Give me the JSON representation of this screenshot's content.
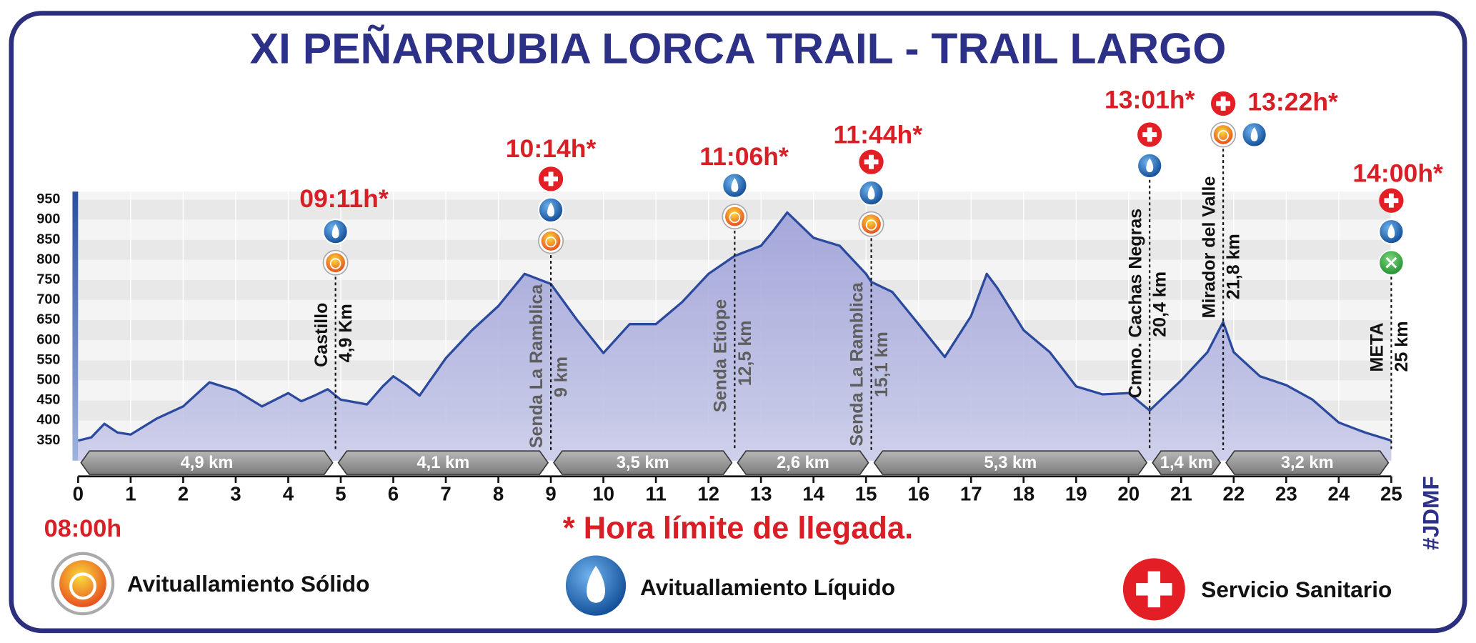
{
  "chart_data": {
    "type": "area",
    "title": "XI PEÑARRUBIA LORCA TRAIL - TRAIL LARGO",
    "x": [
      0,
      0.25,
      0.5,
      0.75,
      1,
      1.5,
      2,
      2.5,
      3,
      3.5,
      4,
      4.25,
      4.5,
      4.75,
      5,
      5.5,
      5.8,
      6,
      6.25,
      6.5,
      7,
      7.5,
      8,
      8.5,
      9,
      9.5,
      10,
      10.5,
      11,
      11.5,
      12,
      12.5,
      13,
      13.25,
      13.5,
      14,
      14.5,
      15,
      15.1,
      15.5,
      16,
      16.5,
      17,
      17.3,
      17.5,
      18,
      18.5,
      19,
      19.5,
      20,
      20.4,
      21,
      21.5,
      21.8,
      22,
      22.5,
      23,
      23.5,
      24,
      24.5,
      25
    ],
    "values": [
      350,
      358,
      392,
      370,
      365,
      405,
      435,
      495,
      475,
      435,
      468,
      448,
      462,
      478,
      452,
      440,
      485,
      510,
      488,
      462,
      555,
      625,
      685,
      765,
      740,
      650,
      568,
      640,
      640,
      695,
      765,
      810,
      835,
      875,
      918,
      855,
      835,
      765,
      745,
      720,
      640,
      558,
      660,
      765,
      730,
      625,
      570,
      485,
      465,
      468,
      425,
      500,
      570,
      645,
      570,
      510,
      488,
      452,
      395,
      370,
      350
    ],
    "color": "#2b4a9e",
    "fill": "#aeb0de",
    "xlim": [
      0,
      25
    ],
    "ylim": [
      300,
      970
    ],
    "xticks": [
      0,
      1,
      2,
      3,
      4,
      5,
      6,
      7,
      8,
      9,
      10,
      11,
      12,
      13,
      14,
      15,
      16,
      17,
      18,
      19,
      20,
      21,
      22,
      23,
      24,
      25
    ],
    "yticks": [
      350,
      400,
      450,
      500,
      550,
      600,
      650,
      700,
      750,
      800,
      850,
      900,
      950
    ],
    "grid": true,
    "start_time": "08:00h",
    "checkpoints": [
      {
        "km": 4.9,
        "name": "Castillo",
        "km_label": "4,9 Km",
        "time": "09:11h*",
        "medical": false,
        "liquid": true,
        "solid": true,
        "finish": false
      },
      {
        "km": 9,
        "name": "Senda La Ramblica",
        "km_label": "9 km",
        "time": "10:14h*",
        "medical": true,
        "liquid": true,
        "solid": true,
        "finish": false
      },
      {
        "km": 12.5,
        "name": "Senda Etiope",
        "km_label": "12,5 km",
        "time": "11:06h*",
        "medical": false,
        "liquid": true,
        "solid": true,
        "finish": false
      },
      {
        "km": 15.1,
        "name": "Senda La Ramblica",
        "km_label": "15,1 km",
        "time": "11:44h*",
        "medical": true,
        "liquid": true,
        "solid": true,
        "finish": false
      },
      {
        "km": 20.4,
        "name": "Cmno. Cachas Negras",
        "km_label": "20,4 km",
        "time": "13:01h*",
        "medical": true,
        "liquid": true,
        "solid": false,
        "finish": false
      },
      {
        "km": 21.8,
        "name": "Mirador del Valle",
        "km_label": "21,8 km",
        "time": "13:22h*",
        "medical": true,
        "liquid": true,
        "solid": true,
        "finish": false
      },
      {
        "km": 25,
        "name": "META",
        "km_label": "25 km",
        "time": "14:00h*",
        "medical": true,
        "liquid": true,
        "solid": false,
        "finish": true
      }
    ],
    "segments": {
      "values": [
        4.9,
        4.1,
        3.5,
        2.6,
        5.3,
        1.4,
        3.2
      ],
      "value_labels": [
        "4,9 km",
        "4,1 km",
        "3,5 km",
        "2,6 km",
        "5,3 km",
        "1,4 km",
        "3,2 km"
      ]
    },
    "footnote": "* Hora límite de llegada.",
    "legend": {
      "solid": "Avituallamiento Sólido",
      "liquid": "Avituallamiento Líquido",
      "medical": "Servicio Sanitario"
    },
    "signature": "#JDMF"
  }
}
